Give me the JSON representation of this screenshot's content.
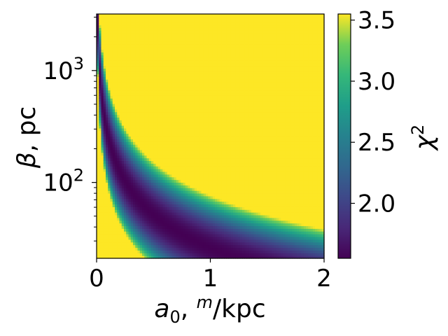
{
  "chart_data": {
    "type": "heatmap",
    "title": "",
    "xlabel": {
      "symbol": "a",
      "subscript": "0",
      "sep": ", ",
      "sup": "m",
      "unit": "/kpc"
    },
    "ylabel": {
      "symbol": "β",
      "unit": ", pc"
    },
    "colorbar_label": {
      "symbol": "χ",
      "sup": "2"
    },
    "x": {
      "scale": "linear",
      "lim": [
        0,
        2
      ],
      "ticks": [
        0,
        1,
        2
      ],
      "tick_labels": [
        "0",
        "1",
        "2"
      ]
    },
    "y": {
      "scale": "log",
      "lim": [
        21,
        3200
      ],
      "ticks": [
        100,
        1000
      ],
      "tick_labels": [
        {
          "base": "10",
          "exp": "2"
        },
        {
          "base": "10",
          "exp": "3"
        }
      ]
    },
    "colorbar": {
      "colormap": "viridis",
      "lim": [
        1.55,
        3.55
      ],
      "ticks": [
        2.0,
        2.5,
        3.0,
        3.5
      ],
      "tick_labels": [
        "2.0",
        "2.5",
        "3.0",
        "3.5"
      ]
    },
    "z_model": {
      "description_of_values": "chi-squared minimum valley along a0*beta ≈ const, saturated above",
      "valley_product_kpc_pc": 26,
      "valley_min": 1.55,
      "valley_width_log": 0.42,
      "valley_growth": 1.6,
      "saturation": 3.55
    }
  }
}
